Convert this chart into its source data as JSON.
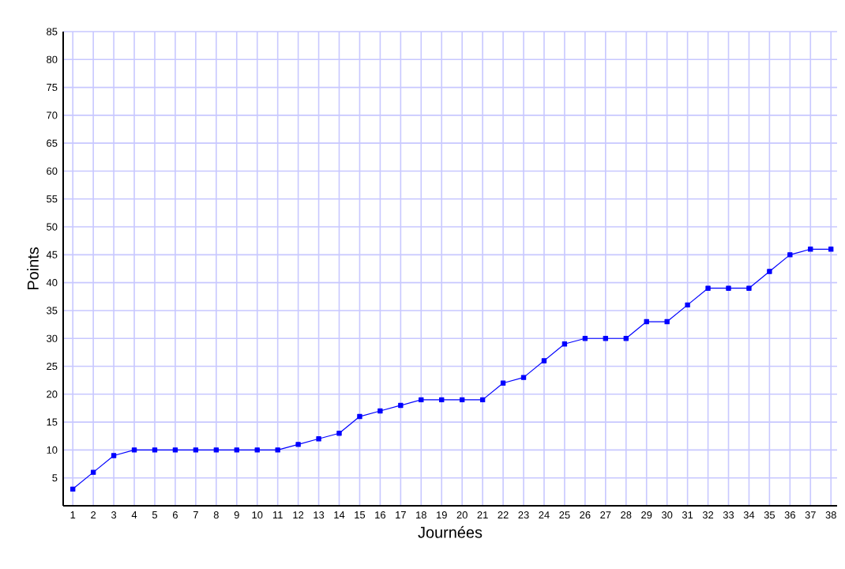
{
  "chart_data": {
    "type": "line",
    "xlabel": "Journées",
    "ylabel": "Points",
    "categories": [
      "1",
      "2",
      "3",
      "4",
      "5",
      "6",
      "7",
      "8",
      "9",
      "10",
      "11",
      "12",
      "13",
      "14",
      "15",
      "16",
      "17",
      "18",
      "19",
      "20",
      "21",
      "22",
      "23",
      "24",
      "25",
      "26",
      "27",
      "28",
      "29",
      "30",
      "31",
      "32",
      "33",
      "34",
      "35",
      "36",
      "37",
      "38"
    ],
    "values": [
      3,
      6,
      9,
      10,
      10,
      10,
      10,
      10,
      10,
      10,
      10,
      11,
      12,
      13,
      16,
      17,
      18,
      19,
      19,
      19,
      19,
      22,
      23,
      26,
      29,
      30,
      30,
      30,
      33,
      33,
      36,
      39,
      39,
      39,
      42,
      45,
      46,
      46
    ],
    "color": "#0000ff",
    "marker": "square",
    "line_style": "solid",
    "ylim": [
      0,
      85
    ],
    "yticks": [
      5,
      10,
      15,
      20,
      25,
      30,
      35,
      40,
      45,
      50,
      55,
      60,
      65,
      70,
      75,
      80,
      85
    ],
    "grid": true
  }
}
